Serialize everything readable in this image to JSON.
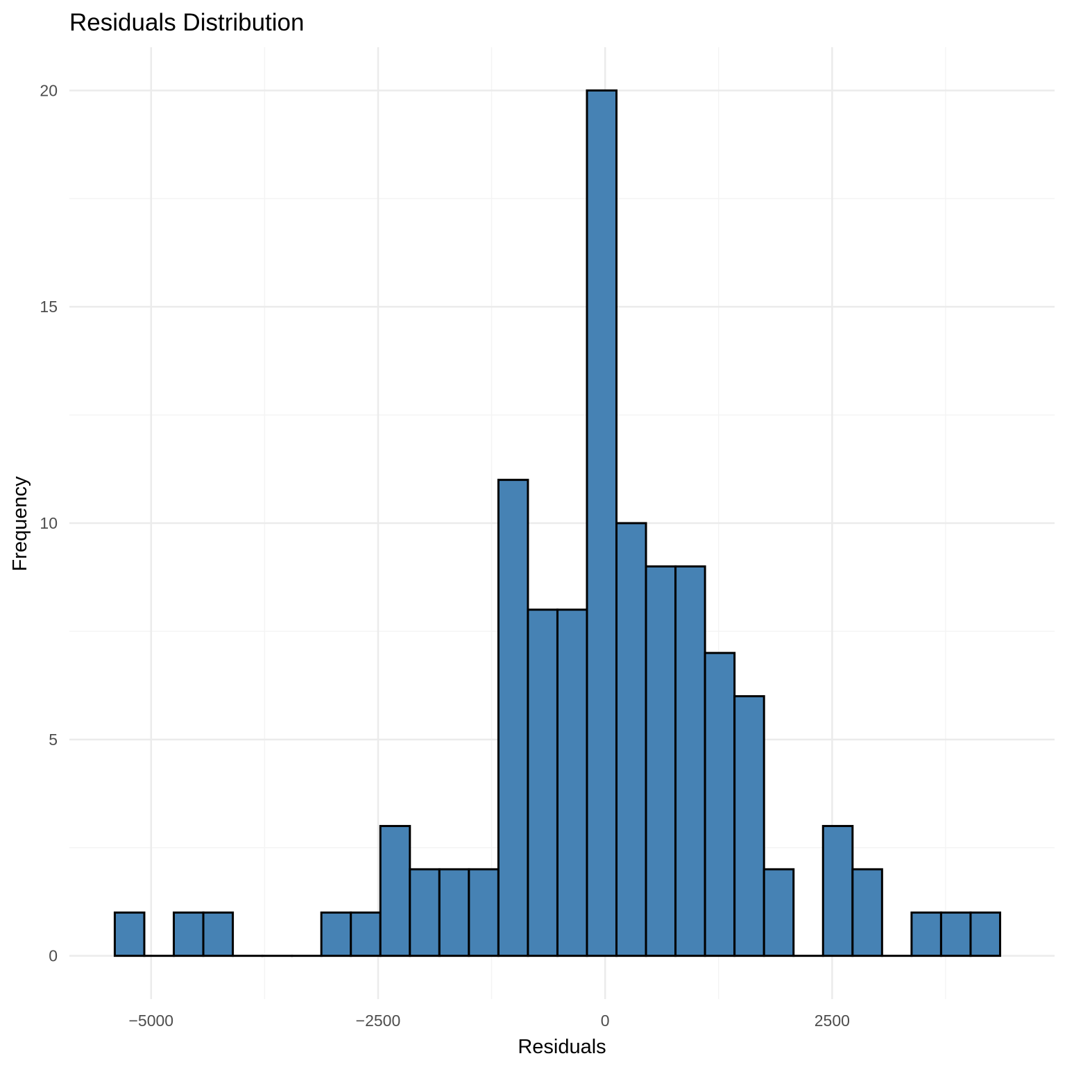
{
  "chart_data": {
    "type": "bar",
    "subtype": "histogram",
    "title": "Residuals Distribution",
    "xlabel": "Residuals",
    "ylabel": "Frequency",
    "xlim": [
      -5900,
      4950
    ],
    "ylim": [
      -1,
      21
    ],
    "bin_width": 325,
    "bin_start": -5400,
    "bins": [
      {
        "x0": -5400,
        "x1": -5075,
        "count": 1
      },
      {
        "x0": -5075,
        "x1": -4750,
        "count": 0
      },
      {
        "x0": -4750,
        "x1": -4425,
        "count": 1
      },
      {
        "x0": -4425,
        "x1": -4100,
        "count": 1
      },
      {
        "x0": -4100,
        "x1": -3775,
        "count": 0
      },
      {
        "x0": -3775,
        "x1": -3450,
        "count": 0
      },
      {
        "x0": -3450,
        "x1": -3125,
        "count": 0
      },
      {
        "x0": -3125,
        "x1": -2800,
        "count": 1
      },
      {
        "x0": -2800,
        "x1": -2475,
        "count": 1
      },
      {
        "x0": -2475,
        "x1": -2150,
        "count": 3
      },
      {
        "x0": -2150,
        "x1": -1825,
        "count": 2
      },
      {
        "x0": -1825,
        "x1": -1500,
        "count": 2
      },
      {
        "x0": -1500,
        "x1": -1175,
        "count": 2
      },
      {
        "x0": -1175,
        "x1": -850,
        "count": 11
      },
      {
        "x0": -850,
        "x1": -525,
        "count": 8
      },
      {
        "x0": -525,
        "x1": -200,
        "count": 8
      },
      {
        "x0": -200,
        "x1": 125,
        "count": 20
      },
      {
        "x0": 125,
        "x1": 450,
        "count": 10
      },
      {
        "x0": 450,
        "x1": 775,
        "count": 9
      },
      {
        "x0": 775,
        "x1": 1100,
        "count": 9
      },
      {
        "x0": 1100,
        "x1": 1425,
        "count": 7
      },
      {
        "x0": 1425,
        "x1": 1750,
        "count": 6
      },
      {
        "x0": 1750,
        "x1": 2075,
        "count": 2
      },
      {
        "x0": 2075,
        "x1": 2400,
        "count": 0
      },
      {
        "x0": 2400,
        "x1": 2725,
        "count": 3
      },
      {
        "x0": 2725,
        "x1": 3050,
        "count": 2
      },
      {
        "x0": 3050,
        "x1": 3375,
        "count": 0
      },
      {
        "x0": 3375,
        "x1": 3700,
        "count": 1
      },
      {
        "x0": 3700,
        "x1": 4025,
        "count": 1
      },
      {
        "x0": 4025,
        "x1": 4350,
        "count": 1
      }
    ],
    "x_ticks": [
      -5000,
      -2500,
      0,
      2500
    ],
    "x_tick_labels": [
      "−5000",
      "−2500",
      "0",
      "2500"
    ],
    "x_minor_ticks": [
      -3750,
      -1250,
      1250,
      3750
    ],
    "y_ticks": [
      0,
      5,
      10,
      15,
      20
    ],
    "y_tick_labels": [
      "0",
      "5",
      "10",
      "15",
      "20"
    ],
    "y_minor_ticks": [
      2.5,
      7.5,
      12.5,
      17.5
    ],
    "grid": true,
    "legend": "none",
    "colors": {
      "bar_fill": "#4682b4",
      "bar_outline": "#000000",
      "grid_major": "#ebebeb",
      "grid_minor": "#f4f4f4",
      "background": "#ffffff"
    }
  }
}
